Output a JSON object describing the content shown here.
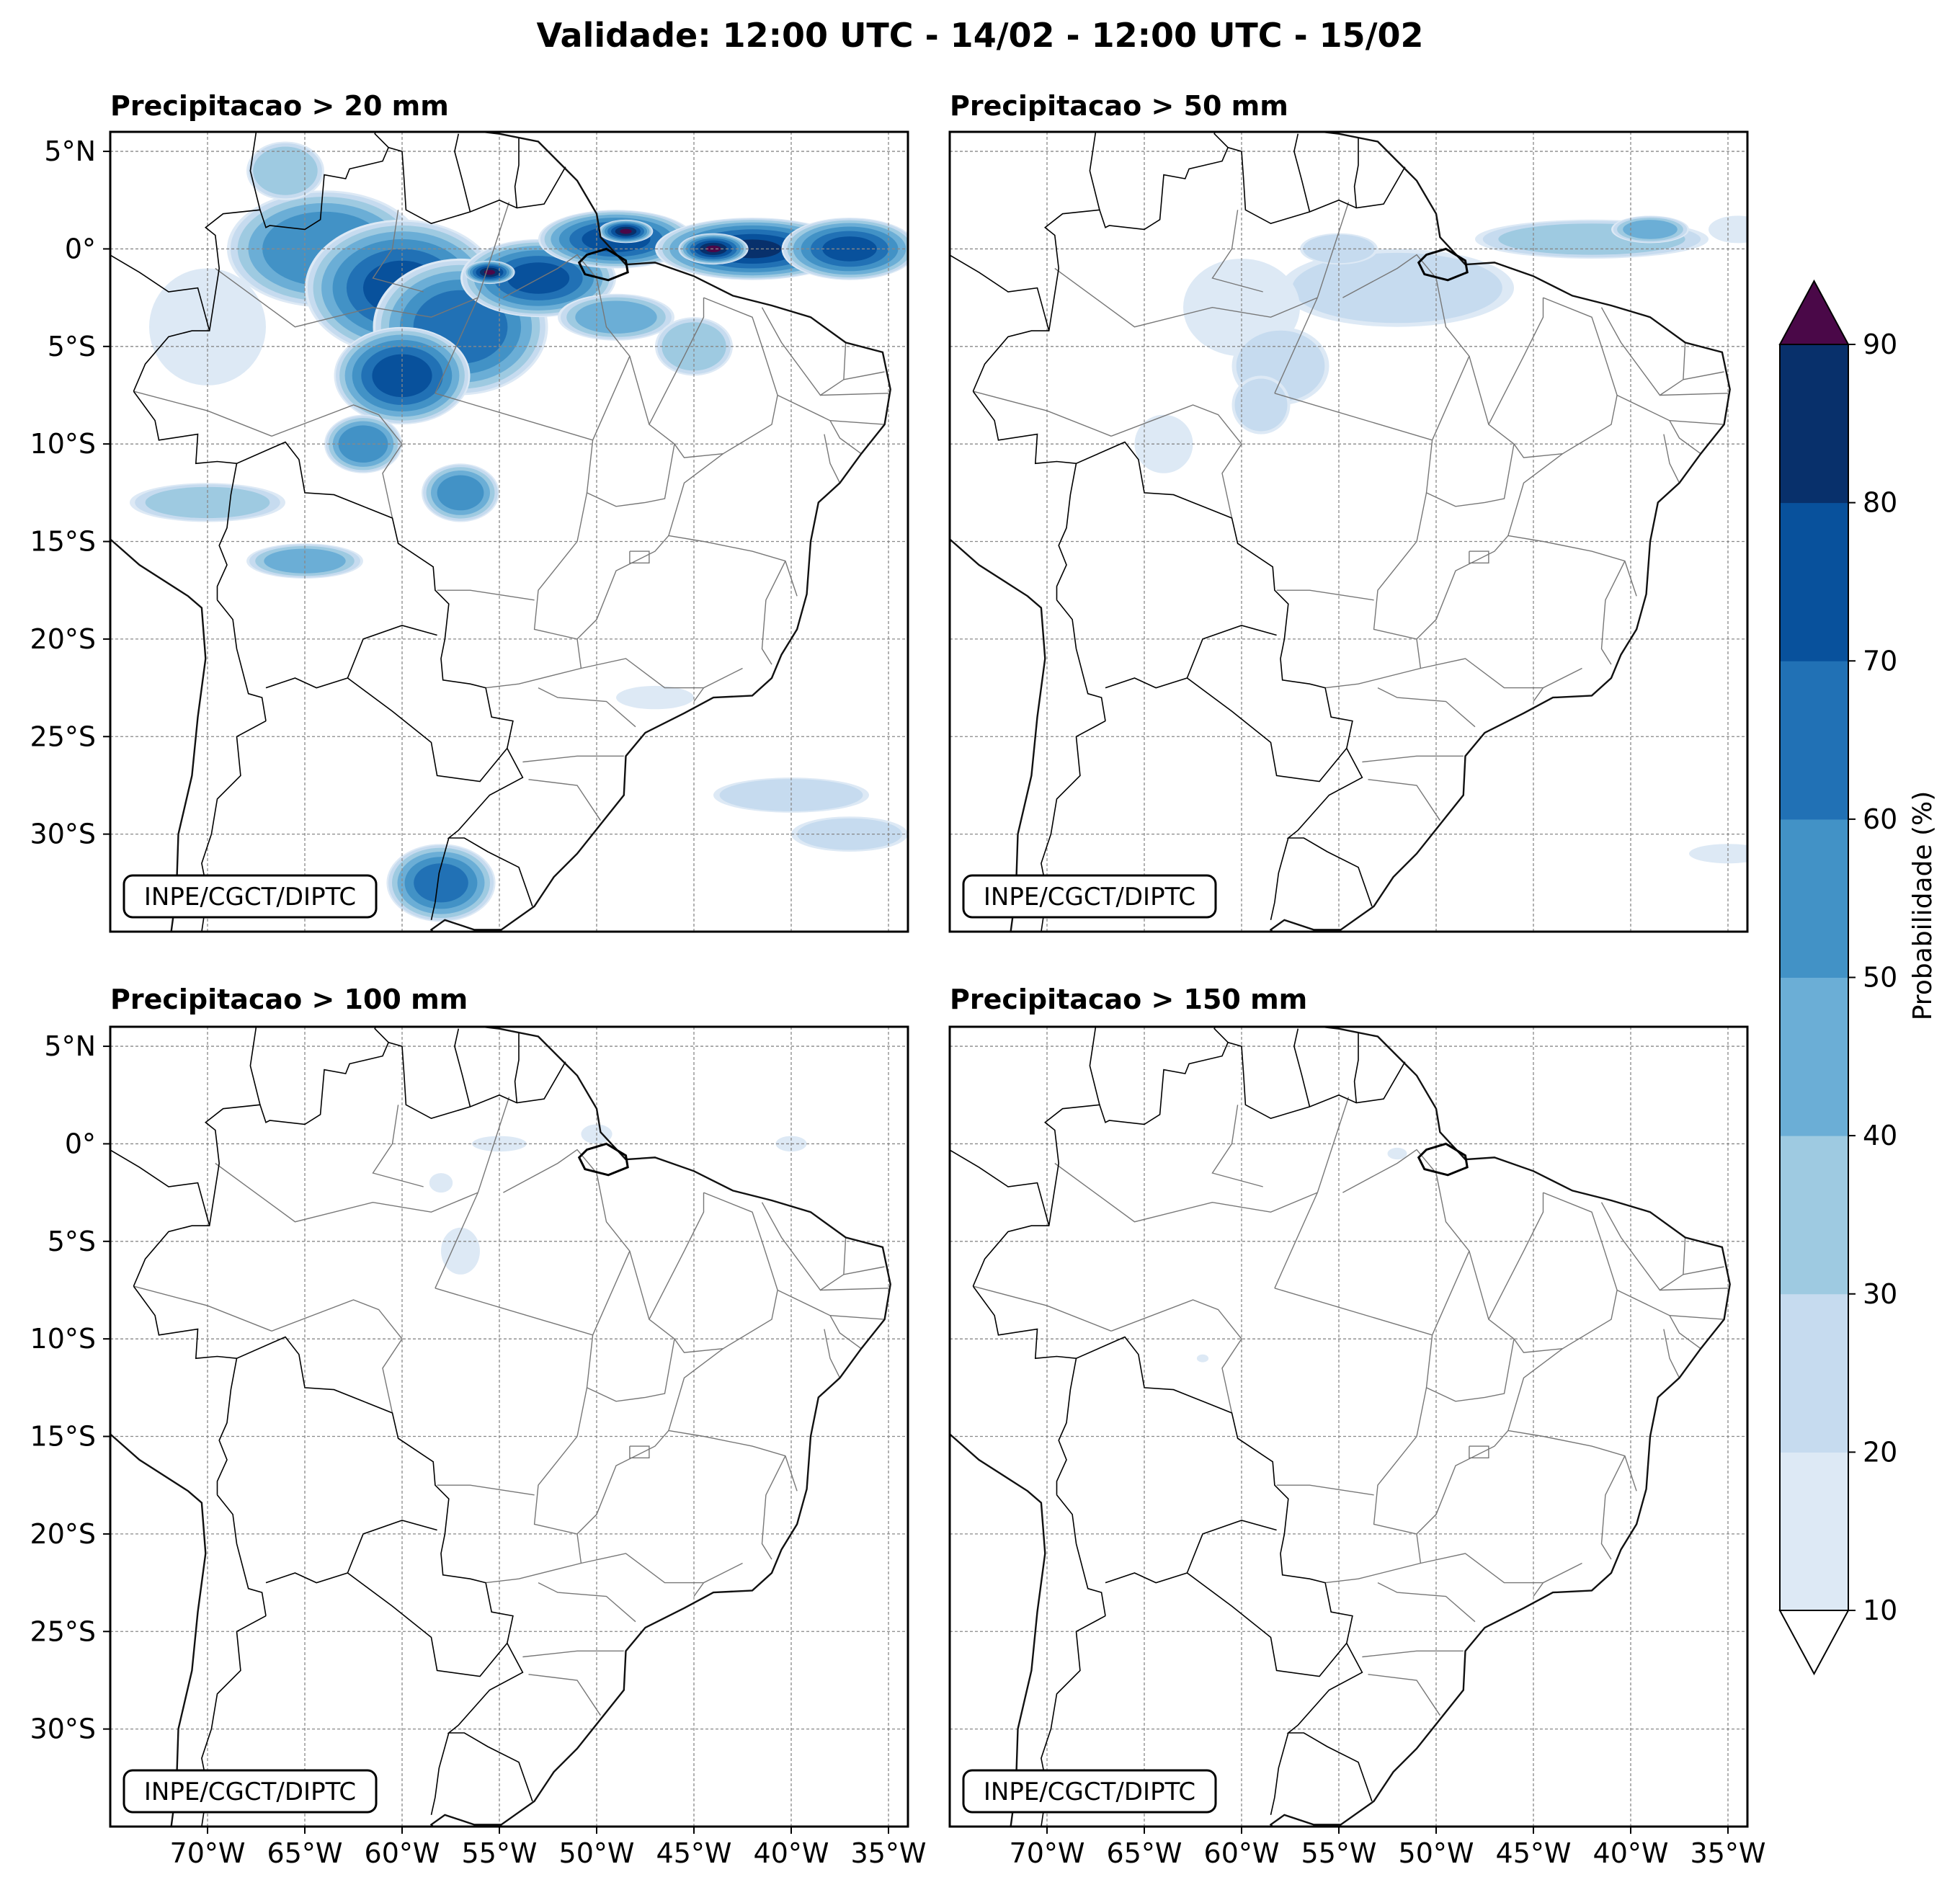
{
  "figure": {
    "title": "Validade: 12:00 UTC - 14/02 - 12:00 UTC - 15/02"
  },
  "panels": [
    {
      "title": "Precipitacao > 20 mm",
      "credit": "INPE/CGCT/DIPTC"
    },
    {
      "title": "Precipitacao > 50 mm",
      "credit": "INPE/CGCT/DIPTC"
    },
    {
      "title": "Precipitacao > 100 mm",
      "credit": "INPE/CGCT/DIPTC"
    },
    {
      "title": "Precipitacao > 150 mm",
      "credit": "INPE/CGCT/DIPTC"
    }
  ],
  "axes": {
    "lat_labels": [
      "5°N",
      "0°",
      "5°S",
      "10°S",
      "15°S",
      "20°S",
      "25°S",
      "30°S"
    ],
    "lat_values": [
      5,
      0,
      -5,
      -10,
      -15,
      -20,
      -25,
      -30
    ],
    "lon_labels": [
      "70°W",
      "65°W",
      "60°W",
      "55°W",
      "50°W",
      "45°W",
      "40°W",
      "35°W"
    ],
    "lon_values": [
      -70,
      -65,
      -60,
      -55,
      -50,
      -45,
      -40,
      -35
    ],
    "extent": {
      "lon_min": -75,
      "lon_max": -34,
      "lat_min": -35,
      "lat_max": 6
    }
  },
  "colorbar": {
    "label": "Probabilidade (%)",
    "ticks": [
      "10",
      "20",
      "30",
      "40",
      "50",
      "60",
      "70",
      "80",
      "90"
    ],
    "colors": [
      "#dde9f5",
      "#c6dbef",
      "#9ecae1",
      "#6baed6",
      "#4292c6",
      "#2171b5",
      "#08519c",
      "#08306b"
    ],
    "over_color": "#4a0848",
    "under_color": "#ffffff"
  },
  "chart_data": {
    "type": "heatmap",
    "variable": "probability of precipitation exceeding threshold (%)",
    "thresholds_mm": [
      20,
      50,
      100,
      150
    ],
    "levels": [
      10,
      20,
      30,
      40,
      50,
      60,
      70,
      80,
      90
    ],
    "blobs": [
      [
        {
          "lon": -64,
          "lat": 0,
          "rx": 5,
          "ry": 3,
          "p": 55
        },
        {
          "lon": -60,
          "lat": -2,
          "rx": 5,
          "ry": 3.5,
          "p": 70
        },
        {
          "lon": -57,
          "lat": -4,
          "rx": 4.5,
          "ry": 3.5,
          "p": 65
        },
        {
          "lon": -60,
          "lat": -6.5,
          "rx": 3.5,
          "ry": 2.5,
          "p": 75
        },
        {
          "lon": -53,
          "lat": -1.5,
          "rx": 4,
          "ry": 2,
          "p": 70
        },
        {
          "lon": -55.5,
          "lat": -1.2,
          "rx": 1.3,
          "ry": 0.6,
          "p": 92
        },
        {
          "lon": -49,
          "lat": 0.5,
          "rx": 4,
          "ry": 1.5,
          "p": 75
        },
        {
          "lon": -48.5,
          "lat": 0.9,
          "rx": 1.4,
          "ry": 0.6,
          "p": 92
        },
        {
          "lon": -42,
          "lat": 0,
          "rx": 5,
          "ry": 1.6,
          "p": 80
        },
        {
          "lon": -44,
          "lat": 0,
          "rx": 1.8,
          "ry": 0.8,
          "p": 92
        },
        {
          "lon": -37,
          "lat": 0,
          "rx": 3.5,
          "ry": 1.6,
          "p": 70
        },
        {
          "lon": -49,
          "lat": -3.5,
          "rx": 3,
          "ry": 1.2,
          "p": 40
        },
        {
          "lon": -45,
          "lat": -5,
          "rx": 2,
          "ry": 1.5,
          "p": 35
        },
        {
          "lon": -62,
          "lat": -10,
          "rx": 2,
          "ry": 1.5,
          "p": 55
        },
        {
          "lon": -57,
          "lat": -12.5,
          "rx": 2,
          "ry": 1.5,
          "p": 50
        },
        {
          "lon": -70,
          "lat": -13,
          "rx": 4,
          "ry": 1,
          "p": 30
        },
        {
          "lon": -65,
          "lat": -16,
          "rx": 3,
          "ry": 0.9,
          "p": 40
        },
        {
          "lon": -58,
          "lat": -32.5,
          "rx": 2.8,
          "ry": 2,
          "p": 60
        },
        {
          "lon": -40,
          "lat": -28,
          "rx": 4,
          "ry": 0.9,
          "p": 25
        },
        {
          "lon": -37,
          "lat": -30,
          "rx": 3,
          "ry": 0.9,
          "p": 20
        },
        {
          "lon": -47,
          "lat": -23,
          "rx": 2,
          "ry": 0.6,
          "p": 15
        },
        {
          "lon": -66,
          "lat": 4,
          "rx": 2,
          "ry": 1.5,
          "p": 35
        },
        {
          "lon": -70,
          "lat": -4,
          "rx": 3,
          "ry": 3,
          "p": 15
        }
      ],
      [
        {
          "lon": -52,
          "lat": -2,
          "rx": 6,
          "ry": 2,
          "p": 20
        },
        {
          "lon": -60,
          "lat": -3,
          "rx": 3,
          "ry": 2.5,
          "p": 18
        },
        {
          "lon": -58,
          "lat": -6,
          "rx": 2.5,
          "ry": 2,
          "p": 22
        },
        {
          "lon": -42,
          "lat": 0.5,
          "rx": 6,
          "ry": 1,
          "p": 30
        },
        {
          "lon": -39,
          "lat": 1,
          "rx": 2,
          "ry": 0.7,
          "p": 40
        },
        {
          "lon": -34.5,
          "lat": 1,
          "rx": 1.5,
          "ry": 0.7,
          "p": 15
        },
        {
          "lon": -55,
          "lat": 0,
          "rx": 2,
          "ry": 0.8,
          "p": 25
        },
        {
          "lon": -59,
          "lat": -8,
          "rx": 1.5,
          "ry": 1.5,
          "p": 20
        },
        {
          "lon": -64,
          "lat": -10,
          "rx": 1.5,
          "ry": 1.5,
          "p": 15
        },
        {
          "lon": -35,
          "lat": -31,
          "rx": 2,
          "ry": 0.5,
          "p": 15
        }
      ],
      [
        {
          "lon": -57,
          "lat": -5.5,
          "rx": 1,
          "ry": 1.2,
          "p": 15
        },
        {
          "lon": -50,
          "lat": 0.5,
          "rx": 0.8,
          "ry": 0.5,
          "p": 15
        },
        {
          "lon": -55,
          "lat": 0,
          "rx": 1.4,
          "ry": 0.4,
          "p": 12
        },
        {
          "lon": -58,
          "lat": -2,
          "rx": 0.6,
          "ry": 0.5,
          "p": 12
        },
        {
          "lon": -40,
          "lat": 0,
          "rx": 0.8,
          "ry": 0.4,
          "p": 12
        }
      ],
      [
        {
          "lon": -52,
          "lat": -0.5,
          "rx": 0.5,
          "ry": 0.3,
          "p": 12
        },
        {
          "lon": -62,
          "lat": -11,
          "rx": 0.3,
          "ry": 0.2,
          "p": 12
        }
      ]
    ]
  }
}
